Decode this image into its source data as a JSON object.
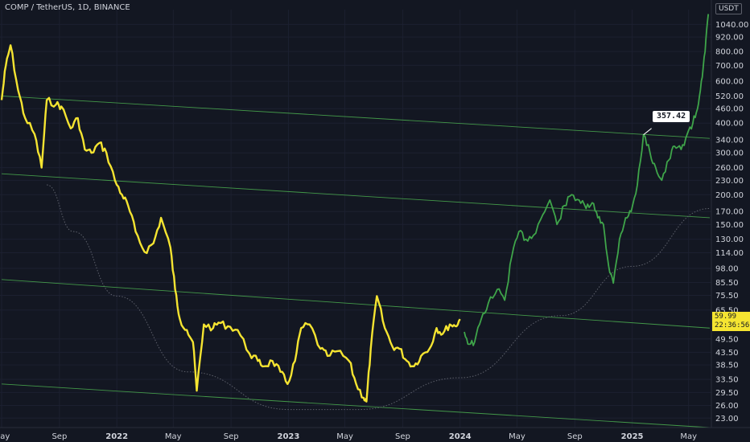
{
  "header": {
    "title": "COMP / TetherUS, 1D, BINANCE"
  },
  "price_axis": {
    "currency": "USDT"
  },
  "last_price": {
    "value": "59.99",
    "countdown": "22:36:56"
  },
  "callout": {
    "label": "357.42"
  },
  "colors": {
    "background": "#131722",
    "history": "#f5e431",
    "projection": "#3fa54a",
    "channel": "#4caf50",
    "curve": "#5d606b",
    "text": "#d1d4dc"
  },
  "chart_data": {
    "type": "line",
    "yscale": "log",
    "ylim": [
      21,
      1200
    ],
    "xlim": [
      "2021-05-01",
      "2025-06-15"
    ],
    "x_ticks": [
      "May",
      "Sep",
      "2022",
      "May",
      "Sep",
      "2023",
      "May",
      "Sep",
      "2024",
      "May",
      "Sep",
      "2025",
      "May"
    ],
    "x_tick_dates": [
      "2021-05-01",
      "2021-09-01",
      "2022-01-01",
      "2022-05-01",
      "2022-09-01",
      "2023-01-01",
      "2023-05-01",
      "2023-09-01",
      "2024-01-01",
      "2024-05-01",
      "2024-09-01",
      "2025-01-01",
      "2025-05-01"
    ],
    "y_ticks": [
      "1040.00",
      "920.00",
      "800.00",
      "700.00",
      "600.00",
      "520.00",
      "460.00",
      "400.00",
      "340.00",
      "300.00",
      "260.00",
      "230.00",
      "200.00",
      "170.00",
      "150.00",
      "130.00",
      "114.00",
      "98.00",
      "85.50",
      "75.50",
      "65.50",
      "49.50",
      "43.50",
      "38.50",
      "33.50",
      "29.50",
      "26.00",
      "23.00"
    ],
    "series": [
      {
        "role": "history",
        "x": [
          "2021-05-01",
          "2021-05-10",
          "2021-05-20",
          "2021-06-05",
          "2021-06-20",
          "2021-07-10",
          "2021-07-25",
          "2021-08-05",
          "2021-08-25",
          "2021-09-05",
          "2021-09-25",
          "2021-10-10",
          "2021-10-25",
          "2021-11-08",
          "2021-11-25",
          "2021-12-10",
          "2021-12-28",
          "2022-01-12",
          "2022-01-25",
          "2022-02-10",
          "2022-03-01",
          "2022-03-20",
          "2022-04-05",
          "2022-04-25",
          "2022-05-05",
          "2022-05-15",
          "2022-05-30",
          "2022-06-12",
          "2022-06-20",
          "2022-07-05",
          "2022-07-25",
          "2022-08-05",
          "2022-08-25",
          "2022-09-15",
          "2022-10-10",
          "2022-10-28",
          "2022-11-10",
          "2022-11-28",
          "2022-12-15",
          "2022-12-30",
          "2023-01-15",
          "2023-01-28",
          "2023-02-15",
          "2023-03-10",
          "2023-03-25",
          "2023-04-15",
          "2023-05-10",
          "2023-05-25",
          "2023-06-10",
          "2023-06-16",
          "2023-06-25",
          "2023-07-08",
          "2023-07-25",
          "2023-08-10",
          "2023-08-25",
          "2023-09-10",
          "2023-09-25",
          "2023-10-10",
          "2023-10-28",
          "2023-11-12",
          "2023-11-25",
          "2023-12-10",
          "2023-12-22",
          "2024-01-01"
        ],
        "values": [
          500,
          700,
          850,
          550,
          420,
          360,
          260,
          500,
          480,
          470,
          380,
          420,
          310,
          300,
          330,
          300,
          230,
          200,
          180,
          140,
          115,
          125,
          160,
          120,
          80,
          60,
          54,
          48,
          30,
          57,
          55,
          58,
          56,
          54,
          43,
          40,
          38,
          40,
          36,
          32,
          40,
          55,
          57,
          45,
          42,
          44,
          40,
          32,
          28,
          27,
          45,
          75,
          55,
          46,
          45,
          40,
          38,
          42,
          45,
          55,
          52,
          57,
          56,
          60
        ]
      },
      {
        "role": "projection",
        "x": [
          "2024-01-10",
          "2024-01-20",
          "2024-02-01",
          "2024-02-15",
          "2024-03-01",
          "2024-03-20",
          "2024-04-05",
          "2024-04-20",
          "2024-05-05",
          "2024-05-20",
          "2024-06-05",
          "2024-06-25",
          "2024-07-10",
          "2024-07-25",
          "2024-08-10",
          "2024-08-25",
          "2024-09-10",
          "2024-09-25",
          "2024-10-08",
          "2024-10-20",
          "2024-11-01",
          "2024-11-12",
          "2024-11-22",
          "2024-12-05",
          "2024-12-18",
          "2024-12-30",
          "2025-01-12",
          "2025-01-25",
          "2025-02-08",
          "2025-02-20",
          "2025-03-05",
          "2025-03-20",
          "2025-04-01",
          "2025-04-15",
          "2025-04-28",
          "2025-05-10",
          "2025-05-20",
          "2025-05-28",
          "2025-06-05",
          "2025-06-12"
        ],
        "values": [
          53,
          47,
          48,
          60,
          70,
          80,
          72,
          110,
          140,
          130,
          135,
          165,
          190,
          150,
          180,
          200,
          190,
          175,
          185,
          160,
          150,
          100,
          85,
          130,
          160,
          170,
          220,
          357.42,
          300,
          260,
          230,
          280,
          320,
          310,
          360,
          400,
          460,
          600,
          800,
          1150
        ]
      }
    ],
    "channel_lines": [
      {
        "x": [
          "2021-05-01",
          "2025-06-15"
        ],
        "values": [
          520,
          345
        ]
      },
      {
        "x": [
          "2021-05-01",
          "2025-06-15"
        ],
        "values": [
          245,
          160
        ]
      },
      {
        "x": [
          "2021-05-01",
          "2025-06-15"
        ],
        "values": [
          88,
          55
        ]
      },
      {
        "x": [
          "2021-05-01",
          "2025-06-15"
        ],
        "values": [
          32,
          21
        ]
      }
    ],
    "curve": {
      "x": [
        "2021-08-05",
        "2021-10-01",
        "2022-01-01",
        "2022-06-01",
        "2023-01-01",
        "2023-06-01",
        "2024-01-01",
        "2024-08-01",
        "2025-01-01",
        "2025-06-15"
      ],
      "values": [
        220,
        140,
        75,
        36,
        25,
        25,
        34,
        62,
        100,
        175
      ]
    },
    "annotations": [
      {
        "x": "2025-01-25",
        "y": 357.42,
        "label": "357.42"
      }
    ]
  }
}
